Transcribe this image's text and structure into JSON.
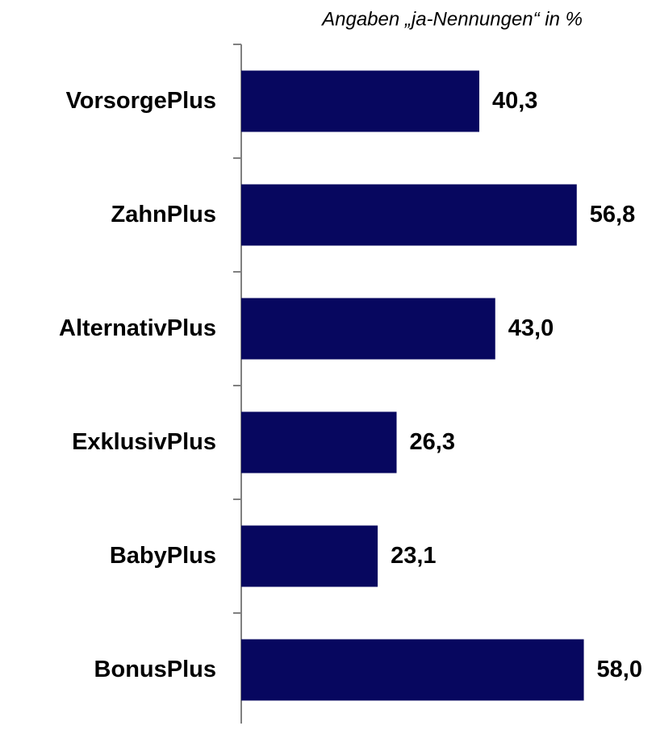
{
  "chart_data": {
    "type": "bar",
    "orientation": "horizontal",
    "subtitle": "Angaben „ja-Nennungen“ in %",
    "categories": [
      "VorsorgePlus",
      "ZahnPlus",
      "AlternativPlus",
      "ExklusivPlus",
      "BabyPlus",
      "BonusPlus"
    ],
    "values": [
      40.3,
      56.8,
      43.0,
      26.3,
      23.1,
      58.0
    ],
    "value_labels": [
      "40,3",
      "56,8",
      "43,0",
      "26,3",
      "23,1",
      "58,0"
    ],
    "color": "#07075f"
  }
}
